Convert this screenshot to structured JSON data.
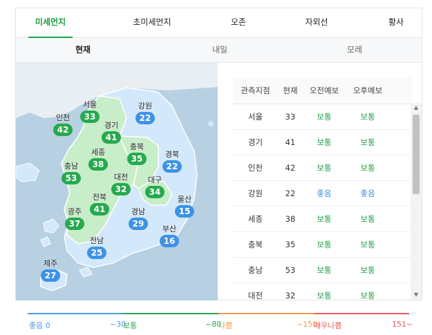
{
  "tabs": [
    "미세먼지",
    "초미세먼지",
    "오존",
    "자외선",
    "황사"
  ],
  "active_tab": 0,
  "subtabs": [
    "현재",
    "내일",
    "모레"
  ],
  "active_subtab": 0,
  "map": {
    "regions": [
      {
        "name": "서울",
        "value": "33",
        "level": "norm"
      },
      {
        "name": "강원",
        "value": "22",
        "level": "good"
      },
      {
        "name": "인천",
        "value": "42",
        "level": "norm"
      },
      {
        "name": "경기",
        "value": "41",
        "level": "norm"
      },
      {
        "name": "세종",
        "value": "38",
        "level": "norm"
      },
      {
        "name": "충북",
        "value": "35",
        "level": "norm"
      },
      {
        "name": "경북",
        "value": "22",
        "level": "good"
      },
      {
        "name": "충남",
        "value": "53",
        "level": "norm"
      },
      {
        "name": "대전",
        "value": "32",
        "level": "norm"
      },
      {
        "name": "대구",
        "value": "34",
        "level": "norm"
      },
      {
        "name": "전북",
        "value": "41",
        "level": "norm"
      },
      {
        "name": "울산",
        "value": "15",
        "level": "good"
      },
      {
        "name": "광주",
        "value": "37",
        "level": "norm"
      },
      {
        "name": "경남",
        "value": "29",
        "level": "good"
      },
      {
        "name": "부산",
        "value": "16",
        "level": "good"
      },
      {
        "name": "전남",
        "value": "25",
        "level": "good"
      },
      {
        "name": "제주",
        "value": "27",
        "level": "good"
      }
    ]
  },
  "table": {
    "headers": [
      "관측지점",
      "현재",
      "오전예보",
      "오후예보"
    ],
    "rows": [
      {
        "site": "서울",
        "now": "33",
        "am": "보통",
        "pm": "보통",
        "am_level": "norm",
        "pm_level": "norm"
      },
      {
        "site": "경기",
        "now": "41",
        "am": "보통",
        "pm": "보통",
        "am_level": "norm",
        "pm_level": "norm"
      },
      {
        "site": "인천",
        "now": "42",
        "am": "보통",
        "pm": "보통",
        "am_level": "norm",
        "pm_level": "norm"
      },
      {
        "site": "강원",
        "now": "22",
        "am": "좋음",
        "pm": "좋음",
        "am_level": "good",
        "pm_level": "good"
      },
      {
        "site": "세종",
        "now": "38",
        "am": "보통",
        "pm": "보통",
        "am_level": "norm",
        "pm_level": "norm"
      },
      {
        "site": "충북",
        "now": "35",
        "am": "보통",
        "pm": "보통",
        "am_level": "norm",
        "pm_level": "norm"
      },
      {
        "site": "충남",
        "now": "53",
        "am": "보통",
        "pm": "보통",
        "am_level": "norm",
        "pm_level": "norm"
      },
      {
        "site": "대전",
        "now": "32",
        "am": "보통",
        "pm": "보통",
        "am_level": "norm",
        "pm_level": "norm"
      }
    ]
  },
  "scroll_icons": {
    "up": "scroll-up-arrow-icon",
    "down": "scroll-down-arrow-icon"
  },
  "legend": [
    {
      "label": "좋음 0",
      "color": "#4a9ae6"
    },
    {
      "label": "~30",
      "color": "#4a9ae6"
    },
    {
      "label": "보통",
      "color": "#2aa94f"
    },
    {
      "label": "~80",
      "color": "#2aa94f"
    },
    {
      "label": "나쁨",
      "color": "#f39a4b"
    },
    {
      "label": "~150",
      "color": "#f39a4b"
    },
    {
      "label": "매우나쁨",
      "color": "#ee5b5b"
    },
    {
      "label": "151~",
      "color": "#ee5b5b"
    }
  ],
  "colors": {
    "accent_green": "#1a9e3d",
    "good_blue": "#3e92e6",
    "normal_green": "#27a94e",
    "sea": "#b7d1e3",
    "land_green": "#c7edc9",
    "land_blue": "#d3e8fa"
  }
}
